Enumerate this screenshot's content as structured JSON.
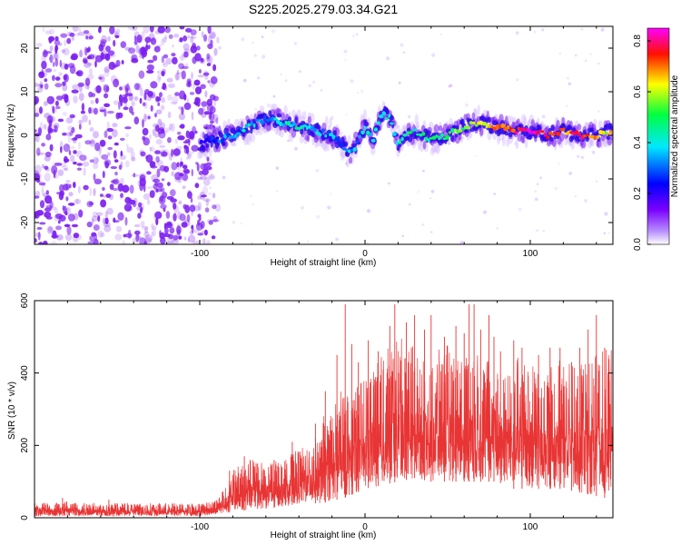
{
  "figure_title": "S225.2025.279.03.34.G21",
  "colors": {
    "trace": "#e83434",
    "dots": "#7b1ff0",
    "background": "#ffffff",
    "axis": "#000000"
  },
  "chart_data": [
    {
      "type": "heatmap",
      "title": "",
      "xlabel": "Height of straight line (km)",
      "ylabel": "Frequency (Hz)",
      "xlim": [
        -200,
        150
      ],
      "ylim": [
        -25,
        25
      ],
      "xticks": [
        -100,
        0,
        100
      ],
      "yticks": [
        -20,
        -10,
        0,
        10,
        20
      ],
      "colorbar": {
        "label": "Normalized spectral amplitude",
        "range": [
          0.0,
          0.85
        ],
        "ticks": [
          "0.0",
          "0.2",
          "0.4",
          "0.6",
          "0.8"
        ],
        "colormap": [
          "#ffffff",
          "#8000ff",
          "#0000ff",
          "#00ffff",
          "#00ff00",
          "#ffff00",
          "#ff0000",
          "#ff00ff"
        ]
      },
      "noise_region_x": [
        -200,
        -95
      ],
      "ridge": {
        "name": "peak frequency trace",
        "x": [
          -100,
          -90,
          -80,
          -70,
          -60,
          -50,
          -40,
          -30,
          -20,
          -12,
          -8,
          0,
          5,
          10,
          15,
          20,
          25,
          30,
          40,
          50,
          60,
          70,
          80,
          90,
          100,
          110,
          120,
          130,
          140,
          150
        ],
        "y": [
          -2,
          -1,
          0,
          2,
          4,
          3,
          2,
          1,
          0,
          -3,
          -4,
          2,
          -1,
          5,
          4,
          -2,
          0,
          1,
          -1,
          0,
          2,
          3,
          2,
          1,
          1,
          0,
          1,
          0,
          0,
          1
        ],
        "peak_amplitude": [
          0.2,
          0.25,
          0.3,
          0.35,
          0.3,
          0.35,
          0.4,
          0.35,
          0.3,
          0.3,
          0.3,
          0.35,
          0.35,
          0.35,
          0.4,
          0.35,
          0.45,
          0.45,
          0.45,
          0.5,
          0.55,
          0.6,
          0.75,
          0.75,
          0.8,
          0.75,
          0.7,
          0.75,
          0.65,
          0.6
        ]
      }
    },
    {
      "type": "line",
      "title": "",
      "xlabel": "Height of straight line (km)",
      "ylabel": "SNR (10 * v/v)",
      "xlim": [
        -200,
        150
      ],
      "ylim": [
        0,
        600
      ],
      "xticks": [
        -100,
        0,
        100
      ],
      "yticks": [
        0,
        200,
        400,
        600
      ],
      "series": [
        {
          "name": "SNR envelope",
          "x": [
            -200,
            -180,
            -160,
            -140,
            -120,
            -100,
            -90,
            -85,
            -80,
            -75,
            -70,
            -65,
            -60,
            -50,
            -40,
            -30,
            -25,
            -20,
            -15,
            -10,
            -5,
            0,
            10,
            20,
            30,
            40,
            50,
            60,
            70,
            80,
            90,
            100,
            110,
            120,
            130,
            140,
            150
          ],
          "low": [
            5,
            5,
            5,
            5,
            5,
            5,
            10,
            15,
            15,
            20,
            20,
            25,
            25,
            30,
            40,
            40,
            40,
            50,
            50,
            60,
            70,
            80,
            90,
            100,
            110,
            100,
            100,
            100,
            100,
            100,
            80,
            80,
            80,
            80,
            70,
            60,
            50
          ],
          "high": [
            40,
            45,
            40,
            40,
            40,
            40,
            50,
            80,
            130,
            150,
            160,
            180,
            150,
            160,
            190,
            220,
            280,
            300,
            350,
            370,
            360,
            400,
            450,
            500,
            480,
            450,
            480,
            460,
            450,
            420,
            450,
            420,
            420,
            440,
            420,
            450,
            480
          ],
          "spikes": [
            [
              -183,
              55
            ],
            [
              -155,
              50
            ],
            [
              -82,
              130
            ],
            [
              -73,
              170
            ],
            [
              -65,
              150
            ],
            [
              -55,
              160
            ],
            [
              -44,
              210
            ],
            [
              -30,
              260
            ],
            [
              -24,
              350
            ],
            [
              -17,
              450
            ],
            [
              -12,
              590
            ],
            [
              -8,
              480
            ],
            [
              -4,
              430
            ],
            [
              2,
              490
            ],
            [
              8,
              460
            ],
            [
              15,
              530
            ],
            [
              18,
              590
            ],
            [
              25,
              540
            ],
            [
              30,
              560
            ],
            [
              36,
              520
            ],
            [
              40,
              560
            ],
            [
              48,
              500
            ],
            [
              55,
              530
            ],
            [
              60,
              510
            ],
            [
              63,
              590
            ],
            [
              66,
              590
            ],
            [
              70,
              520
            ],
            [
              75,
              560
            ],
            [
              78,
              500
            ],
            [
              82,
              460
            ],
            [
              90,
              490
            ],
            [
              95,
              470
            ],
            [
              105,
              450
            ],
            [
              112,
              470
            ],
            [
              118,
              470
            ],
            [
              125,
              430
            ],
            [
              130,
              470
            ],
            [
              135,
              520
            ],
            [
              140,
              560
            ],
            [
              145,
              470
            ],
            [
              150,
              480
            ]
          ]
        }
      ]
    }
  ]
}
